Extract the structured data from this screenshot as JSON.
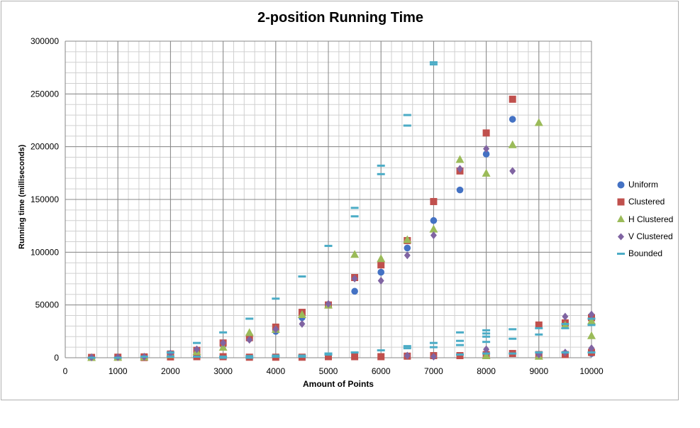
{
  "chart_data": {
    "type": "scatter",
    "title": "2-position Running Time",
    "xlabel": "Amount of Points",
    "ylabel": "Running time (milliseconds)",
    "xlim": [
      0,
      10000
    ],
    "ylim": [
      0,
      300000
    ],
    "xticks": [
      "0",
      "1000",
      "2000",
      "3000",
      "4000",
      "5000",
      "6000",
      "7000",
      "8000",
      "9000",
      "10000"
    ],
    "yticks": [
      "0",
      "50000",
      "100000",
      "150000",
      "200000",
      "250000",
      "300000"
    ],
    "grid": true,
    "legend_position": "right",
    "series": [
      {
        "name": "Uniform",
        "marker": "circle",
        "color": "#4472c4",
        "points": [
          [
            500,
            300
          ],
          [
            1000,
            500
          ],
          [
            1500,
            800
          ],
          [
            2000,
            1200
          ],
          [
            2500,
            3000
          ],
          [
            3000,
            12000
          ],
          [
            3500,
            18000
          ],
          [
            4000,
            25000
          ],
          [
            4500,
            38000
          ],
          [
            5000,
            50000
          ],
          [
            5500,
            63000
          ],
          [
            6000,
            81000
          ],
          [
            6500,
            104000
          ],
          [
            7000,
            130000
          ],
          [
            7500,
            159000
          ],
          [
            8000,
            193000
          ],
          [
            8500,
            226000
          ],
          [
            9000,
            2000
          ],
          [
            9500,
            3000
          ],
          [
            10000,
            4000
          ]
        ]
      },
      {
        "name": "Clustered",
        "marker": "square",
        "color": "#c0504d",
        "points": [
          [
            500,
            300
          ],
          [
            1000,
            500
          ],
          [
            1500,
            800
          ],
          [
            2000,
            3500
          ],
          [
            2500,
            7000
          ],
          [
            3000,
            14000
          ],
          [
            3500,
            19000
          ],
          [
            4000,
            29000
          ],
          [
            4500,
            43000
          ],
          [
            5000,
            50000
          ],
          [
            5500,
            76000
          ],
          [
            6000,
            88000
          ],
          [
            6500,
            111000
          ],
          [
            7000,
            148000
          ],
          [
            7500,
            177000
          ],
          [
            8000,
            213000
          ],
          [
            8500,
            245000
          ],
          [
            9000,
            31000
          ],
          [
            9500,
            33000
          ],
          [
            10000,
            38000
          ],
          [
            1500,
            200
          ],
          [
            2000,
            800
          ],
          [
            2500,
            1000
          ],
          [
            3000,
            1000
          ],
          [
            3500,
            500
          ],
          [
            4000,
            500
          ],
          [
            4500,
            500
          ],
          [
            5000,
            1000
          ],
          [
            5500,
            1000
          ],
          [
            6000,
            1000
          ],
          [
            6500,
            1500
          ],
          [
            7000,
            2000
          ],
          [
            7500,
            2000
          ],
          [
            8000,
            3000
          ],
          [
            8500,
            4000
          ],
          [
            9000,
            3000
          ],
          [
            9500,
            3000
          ],
          [
            10000,
            5000
          ]
        ]
      },
      {
        "name": "H Clustered",
        "marker": "triangle",
        "color": "#9bbb59",
        "points": [
          [
            500,
            300
          ],
          [
            1000,
            500
          ],
          [
            1500,
            800
          ],
          [
            2000,
            3000
          ],
          [
            2500,
            6000
          ],
          [
            3000,
            10000
          ],
          [
            3500,
            24000
          ],
          [
            4000,
            27000
          ],
          [
            4500,
            41000
          ],
          [
            5000,
            50000
          ],
          [
            5500,
            98000
          ],
          [
            6000,
            94000
          ],
          [
            6500,
            112000
          ],
          [
            7000,
            122000
          ],
          [
            7500,
            188000
          ],
          [
            8000,
            175000
          ],
          [
            8500,
            202000
          ],
          [
            9000,
            223000
          ],
          [
            9500,
            31000
          ],
          [
            10000,
            21000
          ],
          [
            8000,
            2000
          ],
          [
            9000,
            1500
          ],
          [
            10000,
            35000
          ]
        ]
      },
      {
        "name": "V Clustered",
        "marker": "diamond",
        "color": "#8064a2",
        "points": [
          [
            500,
            300
          ],
          [
            1000,
            500
          ],
          [
            1500,
            800
          ],
          [
            2000,
            4000
          ],
          [
            2500,
            8000
          ],
          [
            3000,
            14000
          ],
          [
            3500,
            17000
          ],
          [
            4000,
            27000
          ],
          [
            4500,
            32000
          ],
          [
            5000,
            51000
          ],
          [
            5500,
            75000
          ],
          [
            6000,
            73000
          ],
          [
            6500,
            97000
          ],
          [
            7000,
            116000
          ],
          [
            7500,
            179000
          ],
          [
            8000,
            198000
          ],
          [
            8500,
            177000
          ],
          [
            9000,
            3000
          ],
          [
            9500,
            39000
          ],
          [
            10000,
            41000
          ],
          [
            8000,
            8000
          ],
          [
            9500,
            5000
          ],
          [
            10000,
            9000
          ],
          [
            6500,
            2000
          ],
          [
            7000,
            1000
          ]
        ]
      },
      {
        "name": "Bounded",
        "marker": "dash",
        "color": "#4bacc6",
        "points": [
          [
            500,
            0
          ],
          [
            1000,
            0
          ],
          [
            1500,
            1000
          ],
          [
            2000,
            5000
          ],
          [
            2500,
            14000
          ],
          [
            3000,
            24000
          ],
          [
            3500,
            37000
          ],
          [
            4000,
            56000
          ],
          [
            4500,
            77000
          ],
          [
            5000,
            106000
          ],
          [
            5500,
            134000
          ],
          [
            5500,
            142000
          ],
          [
            6000,
            174000
          ],
          [
            6000,
            182000
          ],
          [
            6500,
            220000
          ],
          [
            6500,
            230000
          ],
          [
            7000,
            278000
          ],
          [
            7000,
            280000
          ],
          [
            7500,
            24000
          ],
          [
            7500,
            16000
          ],
          [
            7500,
            12000
          ],
          [
            8000,
            26000
          ],
          [
            8000,
            23000
          ],
          [
            8000,
            20000
          ],
          [
            8000,
            15000
          ],
          [
            8500,
            27000
          ],
          [
            8500,
            18000
          ],
          [
            9000,
            28000
          ],
          [
            9000,
            22000
          ],
          [
            9500,
            32000
          ],
          [
            9500,
            28000
          ],
          [
            10000,
            31000
          ],
          [
            10000,
            37000
          ],
          [
            2000,
            1000
          ],
          [
            2500,
            1000
          ],
          [
            3000,
            1000
          ],
          [
            3500,
            1500
          ],
          [
            4000,
            1000
          ],
          [
            4500,
            1000
          ],
          [
            5000,
            3000
          ],
          [
            5500,
            5000
          ],
          [
            6000,
            7000
          ],
          [
            6500,
            9000
          ],
          [
            6500,
            11000
          ],
          [
            7000,
            10000
          ],
          [
            7000,
            14000
          ],
          [
            7500,
            3000
          ],
          [
            8000,
            4000
          ],
          [
            8500,
            4000
          ],
          [
            9000,
            5000
          ],
          [
            9500,
            5000
          ],
          [
            10000,
            5000
          ],
          [
            4000,
            2000
          ],
          [
            4500,
            2000
          ],
          [
            5000,
            4000
          ],
          [
            3000,
            0
          ],
          [
            3500,
            0
          ]
        ]
      }
    ]
  }
}
